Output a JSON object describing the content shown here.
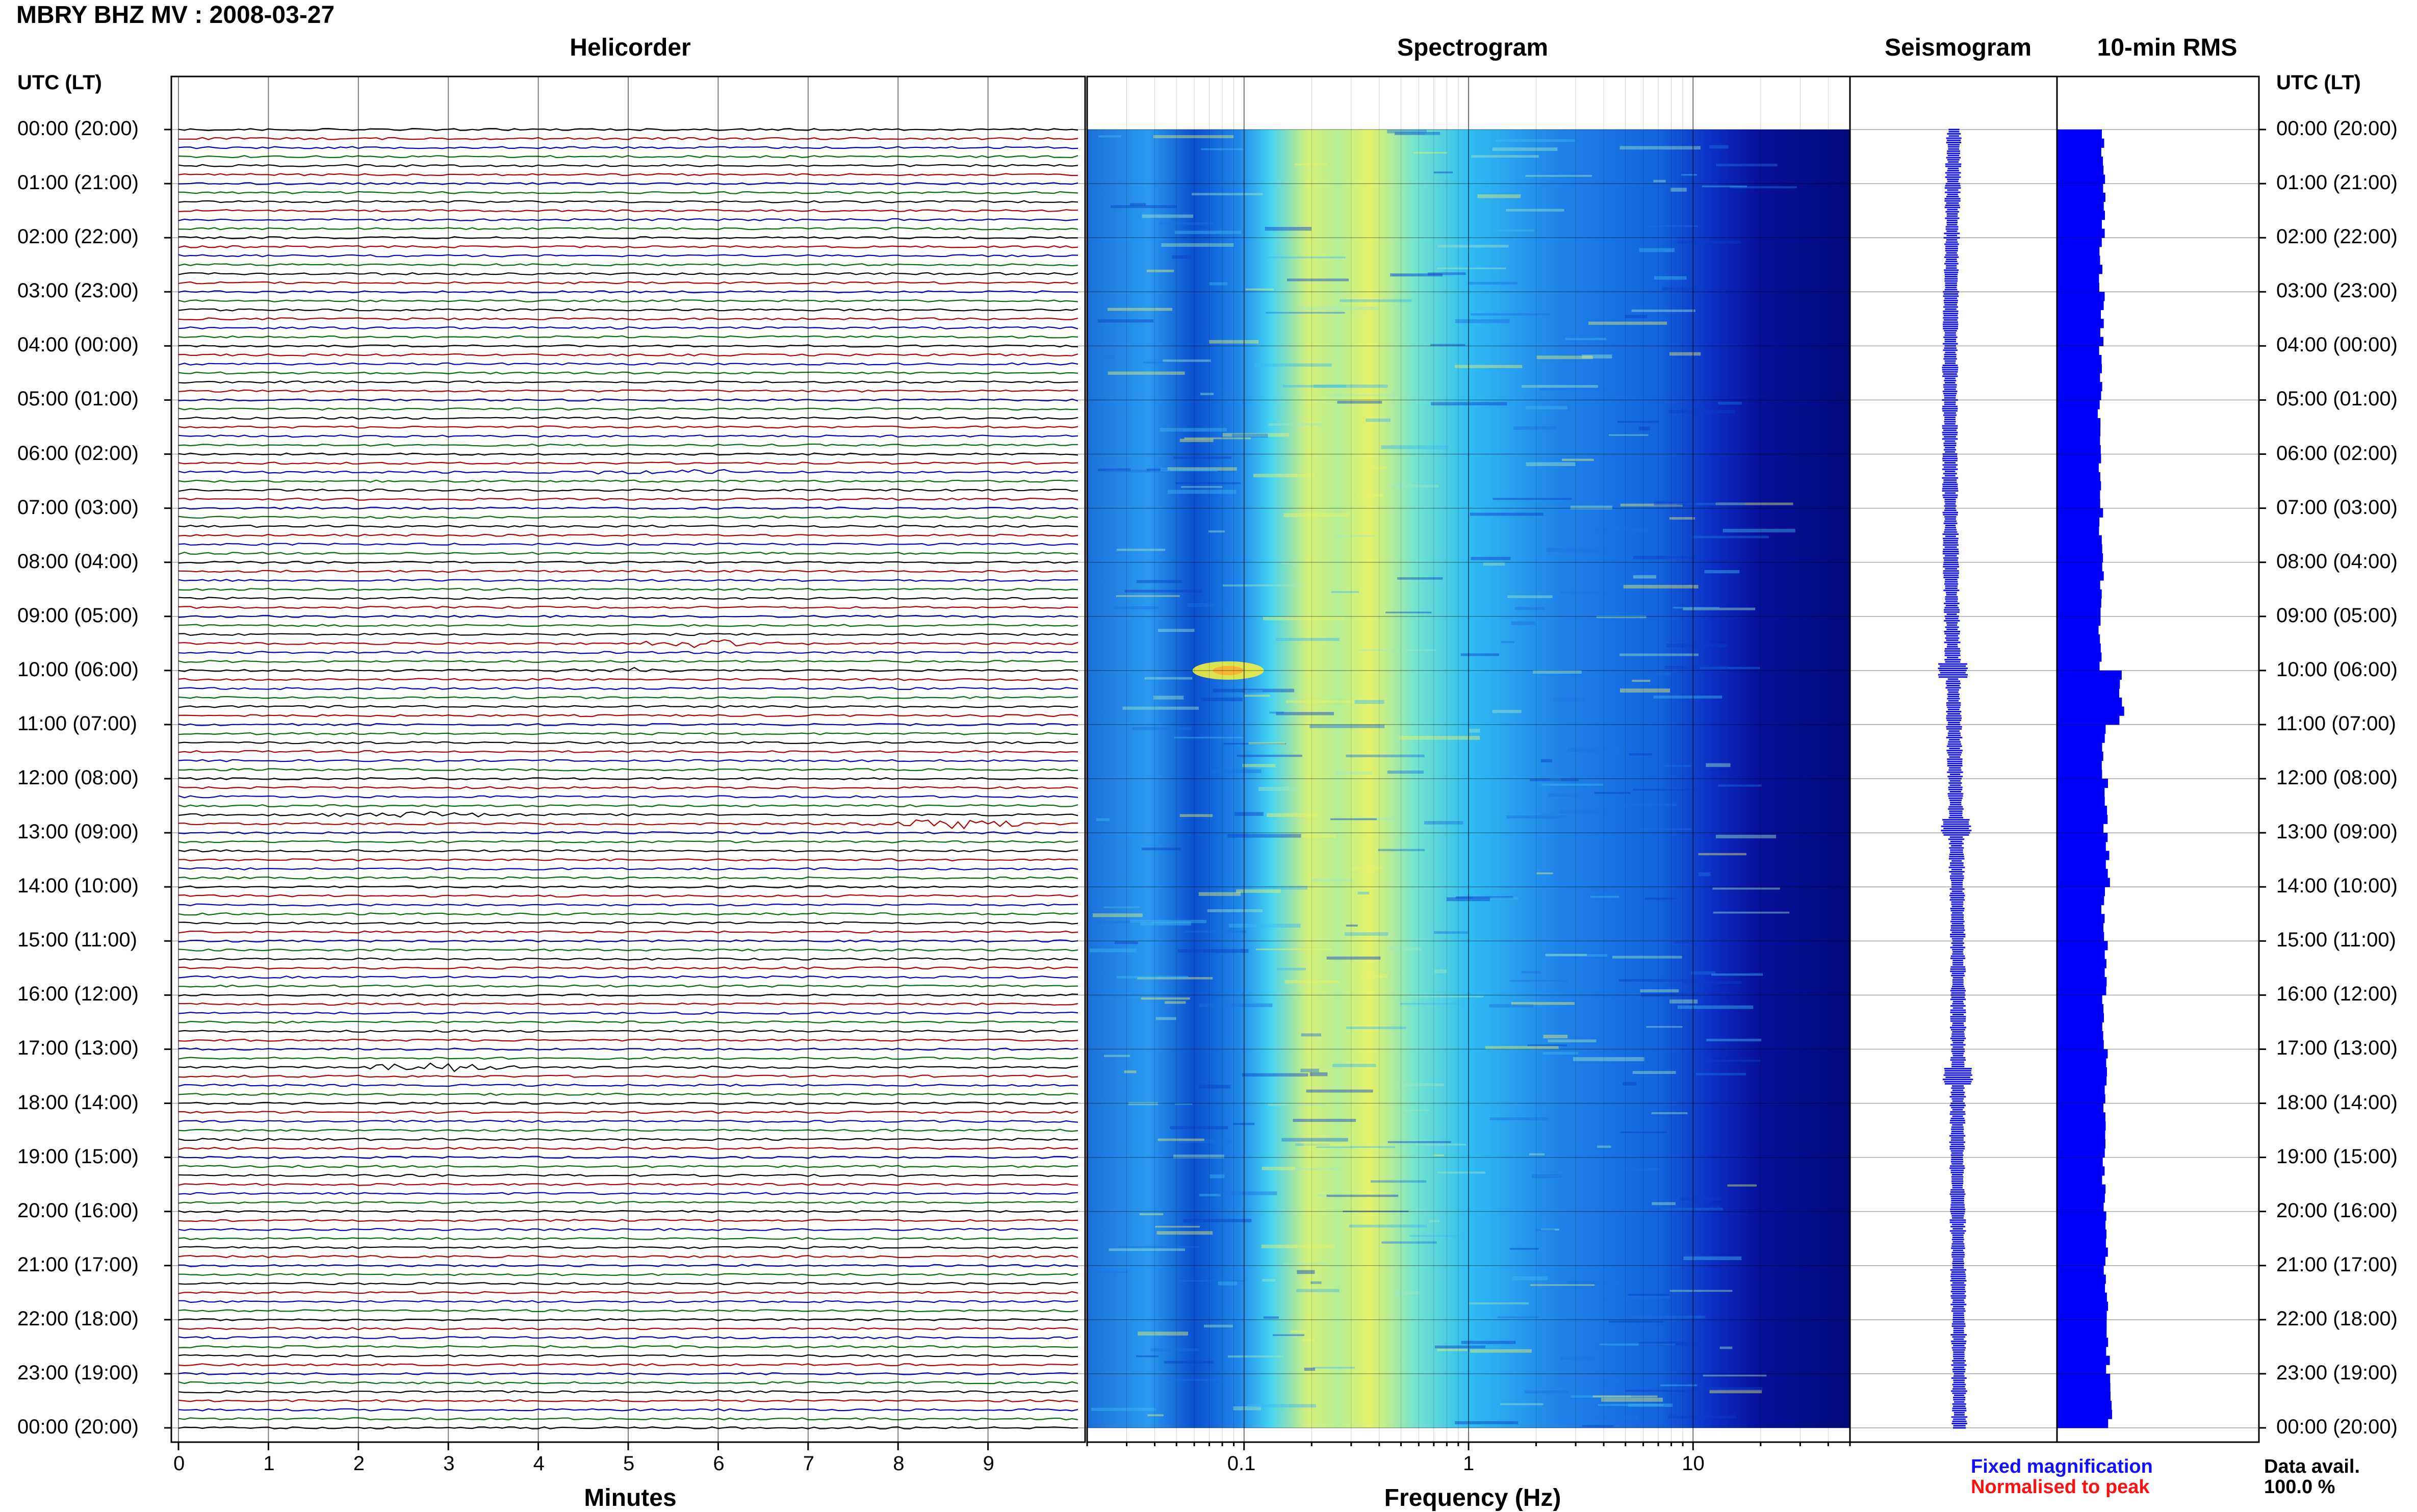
{
  "title": "MBRY BHZ MV : 2008-03-27",
  "panels": {
    "helicorder": "Helicorder",
    "spectrogram": "Spectrogram",
    "seismogram": "Seismogram",
    "rms": "10-min RMS"
  },
  "time_header": "UTC (LT)",
  "hour_labels": [
    "00:00 (20:00)",
    "01:00 (21:00)",
    "02:00 (22:00)",
    "03:00 (23:00)",
    "04:00 (00:00)",
    "05:00 (01:00)",
    "06:00 (02:00)",
    "07:00 (03:00)",
    "08:00 (04:00)",
    "09:00 (05:00)",
    "10:00 (06:00)",
    "11:00 (07:00)",
    "12:00 (08:00)",
    "13:00 (09:00)",
    "14:00 (10:00)",
    "15:00 (11:00)",
    "16:00 (12:00)",
    "17:00 (13:00)",
    "18:00 (14:00)",
    "19:00 (15:00)",
    "20:00 (16:00)",
    "21:00 (17:00)",
    "22:00 (18:00)",
    "23:00 (19:00)",
    "00:00 (20:00)"
  ],
  "legend": {
    "fixed": "Fixed magnification",
    "normalised": "Normalised to peak",
    "fixed_color": "#1010ff",
    "normalised_color": "#ff1010"
  },
  "data_availability": {
    "label": "Data avail.",
    "value": "100.0 %"
  },
  "colors": {
    "trace_cycle": [
      "#000000",
      "#b00000",
      "#0000c0",
      "#007000"
    ],
    "rms_bar": "#0000ff"
  },
  "chart_data": [
    {
      "type": "line",
      "panel": "helicorder",
      "title": "Helicorder",
      "xlabel": "Minutes",
      "x_ticks": [
        0,
        1,
        2,
        3,
        4,
        5,
        6,
        7,
        8,
        9
      ],
      "xlim": [
        0,
        10
      ],
      "traces_per_hour": 6,
      "trace_minutes": 10,
      "events": [
        {
          "start_hour": 6.4,
          "note_minute": 5.5,
          "amplitude": 0.6
        },
        {
          "start_hour": 9.55,
          "note_minute": 5.9,
          "amplitude": 0.7
        },
        {
          "start_hour": 10.0,
          "note_minute": 5.0,
          "amplitude": 0.4
        },
        {
          "start_hour": 12.6,
          "note_minute": 2.7,
          "amplitude": 0.5
        },
        {
          "start_hour": 12.8,
          "note_minute": 8.7,
          "amplitude": 1.0
        },
        {
          "start_hour": 17.4,
          "note_minute": 2.9,
          "amplitude": 1.0
        }
      ]
    },
    {
      "type": "heatmap",
      "panel": "spectrogram",
      "title": "Spectrogram",
      "xlabel": "Frequency (Hz)",
      "x_scale": "log",
      "x_ticks": [
        "0.1",
        "1",
        "10"
      ],
      "xlim": [
        0.02,
        50
      ],
      "ylim_hours": [
        0,
        24
      ],
      "colormap": "jet"
    },
    {
      "type": "line",
      "panel": "seismogram",
      "title": "Seismogram",
      "note": "24-hour compressed waveform, vertical"
    },
    {
      "type": "bar",
      "panel": "rms",
      "title": "10-min RMS",
      "orientation": "horizontal",
      "hours": [
        0,
        1,
        2,
        3,
        4,
        5,
        6,
        7,
        8,
        9,
        10,
        11,
        12,
        13,
        14,
        15,
        16,
        17,
        18,
        19,
        20,
        21,
        22,
        23
      ],
      "values": [
        1.0,
        1.0,
        0.95,
        0.98,
        0.93,
        0.9,
        0.92,
        0.95,
        0.96,
        0.92,
        1.4,
        1.0,
        1.05,
        1.1,
        1.0,
        1.05,
        1.0,
        1.05,
        1.05,
        1.0,
        1.05,
        1.05,
        1.1,
        1.15
      ],
      "xlim": [
        0,
        2
      ]
    }
  ]
}
